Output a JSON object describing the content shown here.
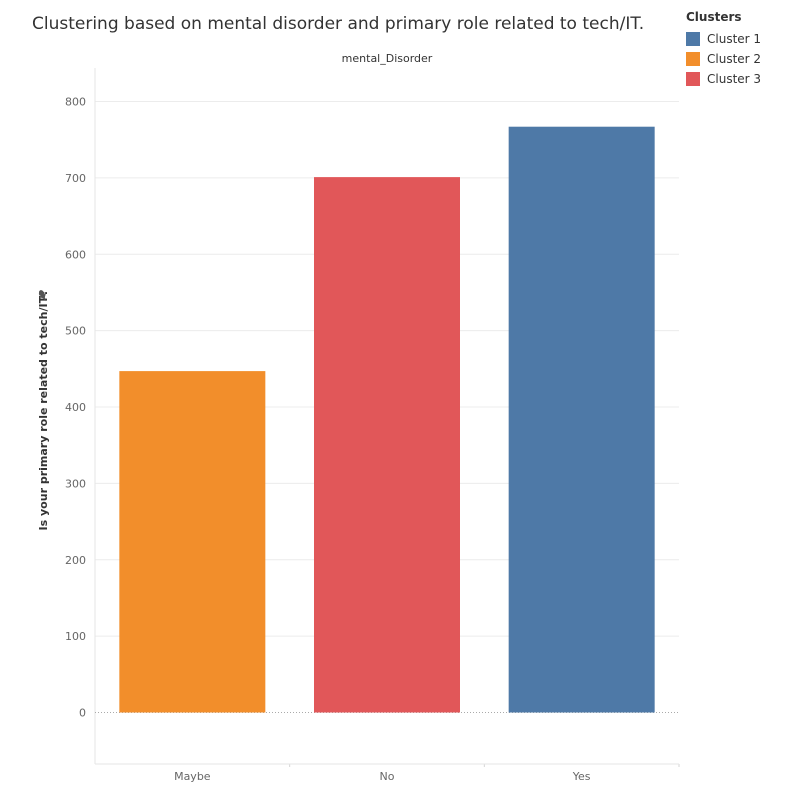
{
  "chart_data": {
    "type": "bar",
    "title": "Clustering based on mental disorder and primary role related to tech/IT.",
    "column_header": "mental_Disorder",
    "xlabel": "",
    "ylabel": "Is your primary role related to tech/IT?",
    "categories": [
      "Maybe",
      "No",
      "Yes"
    ],
    "values": [
      447,
      701,
      767
    ],
    "bar_clusters": [
      "Cluster 2",
      "Cluster 3",
      "Cluster 1"
    ],
    "ylim": [
      -70,
      820
    ],
    "yticks": [
      0,
      100,
      200,
      300,
      400,
      500,
      600,
      700,
      800
    ],
    "grid": true,
    "legend": {
      "title": "Clusters",
      "placement": "top-right",
      "items": [
        {
          "name": "Cluster 1",
          "color": "#4e79a7"
        },
        {
          "name": "Cluster 2",
          "color": "#f28e2b"
        },
        {
          "name": "Cluster 3",
          "color": "#e15759"
        }
      ]
    }
  },
  "icons": {
    "pin": "pin-icon"
  }
}
